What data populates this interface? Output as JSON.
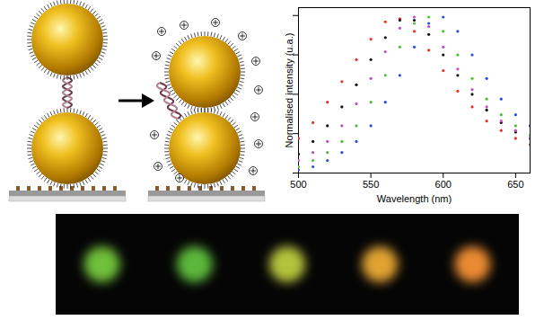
{
  "chart_data": {
    "type": "scatter",
    "x_label": "Wavelength (nm)",
    "y_label": "Normalised intensity (u.a.)",
    "x": [
      500,
      510,
      520,
      530,
      540,
      550,
      560,
      570,
      580,
      590,
      600,
      610,
      620,
      630,
      640,
      650,
      660
    ],
    "series": [
      {
        "color": "#e8322a",
        "values": [
          0.22,
          0.32,
          0.45,
          0.58,
          0.72,
          0.85,
          0.96,
          0.98,
          0.9,
          0.78,
          0.65,
          0.52,
          0.42,
          0.33,
          0.27,
          0.22,
          0.18
        ]
      },
      {
        "color": "#111111",
        "values": [
          0.12,
          0.2,
          0.3,
          0.42,
          0.56,
          0.72,
          0.86,
          0.97,
          0.97,
          0.88,
          0.75,
          0.62,
          0.5,
          0.4,
          0.32,
          0.26,
          0.22
        ]
      },
      {
        "color": "#c04fc0",
        "values": [
          0.08,
          0.13,
          0.2,
          0.3,
          0.44,
          0.6,
          0.77,
          0.92,
          0.99,
          0.93,
          0.8,
          0.66,
          0.53,
          0.42,
          0.33,
          0.27,
          0.22
        ]
      },
      {
        "color": "#4fbf3a",
        "values": [
          0.04,
          0.08,
          0.13,
          0.2,
          0.3,
          0.45,
          0.62,
          0.8,
          0.95,
          0.99,
          0.9,
          0.75,
          0.6,
          0.47,
          0.37,
          0.3,
          0.24
        ]
      },
      {
        "color": "#2a4fd8",
        "values": [
          0.02,
          0.04,
          0.08,
          0.13,
          0.2,
          0.3,
          0.45,
          0.62,
          0.8,
          0.95,
          0.99,
          0.9,
          0.75,
          0.6,
          0.47,
          0.37,
          0.3
        ]
      }
    ],
    "xlim": [
      500,
      660
    ],
    "xticks": [
      500,
      550,
      600,
      650
    ],
    "ylim": [
      0,
      1.05
    ],
    "yticks": [
      0,
      0.25,
      0.5,
      0.75,
      1
    ],
    "tick_labels": "x",
    "grid": false,
    "marker": "dot"
  },
  "spots": {
    "colors": [
      "#6fc03a",
      "#5cb83a",
      "#b6c23c",
      "#e0a233",
      "#ea8a30"
    ]
  }
}
